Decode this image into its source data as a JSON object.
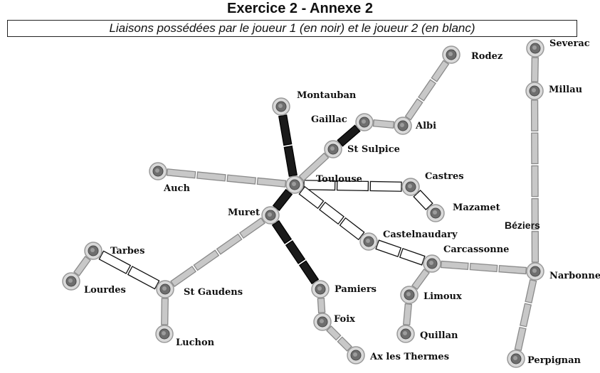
{
  "header": {
    "title": "Exercice 2 - Annexe 2",
    "subtitle": "Liaisons possédées par le joueur 1 (en noir) et le joueur 2 (en blanc)"
  },
  "cities": [
    {
      "id": "rodez",
      "label": "Rodez"
    },
    {
      "id": "severac",
      "label": "Severac"
    },
    {
      "id": "millau",
      "label": "Millau"
    },
    {
      "id": "montauban",
      "label": "Montauban"
    },
    {
      "id": "gaillac",
      "label": "Gaillac"
    },
    {
      "id": "albi",
      "label": "Albi"
    },
    {
      "id": "stsulpice",
      "label": "St Sulpice"
    },
    {
      "id": "auch",
      "label": "Auch"
    },
    {
      "id": "toulouse",
      "label": "Toulouse"
    },
    {
      "id": "castres",
      "label": "Castres"
    },
    {
      "id": "mazamet",
      "label": "Mazamet"
    },
    {
      "id": "muret",
      "label": "Muret"
    },
    {
      "id": "castelnaudary",
      "label": "Castelnaudary"
    },
    {
      "id": "carcassonne",
      "label": "Carcassonne"
    },
    {
      "id": "tarbes",
      "label": "Tarbes"
    },
    {
      "id": "lourdes",
      "label": "Lourdes"
    },
    {
      "id": "stgaudens",
      "label": "St Gaudens"
    },
    {
      "id": "pamiers",
      "label": "Pamiers"
    },
    {
      "id": "limoux",
      "label": "Limoux"
    },
    {
      "id": "narbonne",
      "label": "Narbonne"
    },
    {
      "id": "foix",
      "label": "Foix"
    },
    {
      "id": "quillan",
      "label": "Quillan"
    },
    {
      "id": "luchon",
      "label": "Luchon"
    },
    {
      "id": "axlesthermes",
      "label": "Ax les Thermes"
    },
    {
      "id": "perpignan",
      "label": "Perpignan"
    },
    {
      "id": "beziers",
      "label": "Béziers"
    }
  ],
  "links": [
    {
      "from": "toulouse",
      "to": "montauban",
      "cars": 2,
      "owner": "noir"
    },
    {
      "from": "stsulpice",
      "to": "gaillac",
      "cars": 1,
      "owner": "noir"
    },
    {
      "from": "toulouse",
      "to": "muret",
      "cars": 1,
      "owner": "noir"
    },
    {
      "from": "muret",
      "to": "pamiers",
      "cars": 3,
      "owner": "noir"
    },
    {
      "from": "toulouse",
      "to": "castres",
      "cars": 3,
      "owner": "blanc"
    },
    {
      "from": "castres",
      "to": "mazamet",
      "cars": 1,
      "owner": "blanc"
    },
    {
      "from": "toulouse",
      "to": "castelnaudary",
      "cars": 3,
      "owner": "blanc"
    },
    {
      "from": "castelnaudary",
      "to": "carcassonne",
      "cars": 2,
      "owner": "blanc"
    },
    {
      "from": "tarbes",
      "to": "stgaudens",
      "cars": 2,
      "owner": "blanc"
    },
    {
      "from": "toulouse",
      "to": "auch",
      "cars": 4,
      "owner": "libre"
    },
    {
      "from": "toulouse",
      "to": "stsulpice",
      "cars": 1,
      "owner": "libre"
    },
    {
      "from": "gaillac",
      "to": "albi",
      "cars": 1,
      "owner": "libre"
    },
    {
      "from": "albi",
      "to": "rodez",
      "cars": 3,
      "owner": "libre"
    },
    {
      "from": "severac",
      "to": "millau",
      "cars": 1,
      "owner": "libre"
    },
    {
      "from": "millau",
      "to": "narbonne",
      "cars": 5,
      "owner": "libre"
    },
    {
      "from": "muret",
      "to": "stgaudens",
      "cars": 4,
      "owner": "libre"
    },
    {
      "from": "tarbes",
      "to": "lourdes",
      "cars": 1,
      "owner": "libre"
    },
    {
      "from": "stgaudens",
      "to": "luchon",
      "cars": 1,
      "owner": "libre"
    },
    {
      "from": "carcassonne",
      "to": "narbonne",
      "cars": 3,
      "owner": "libre"
    },
    {
      "from": "carcassonne",
      "to": "limoux",
      "cars": 1,
      "owner": "libre"
    },
    {
      "from": "limoux",
      "to": "quillan",
      "cars": 1,
      "owner": "libre"
    },
    {
      "from": "narbonne",
      "to": "perpignan",
      "cars": 3,
      "owner": "libre"
    },
    {
      "from": "pamiers",
      "to": "foix",
      "cars": 1,
      "owner": "libre"
    },
    {
      "from": "foix",
      "to": "axlesthermes",
      "cars": 2,
      "owner": "libre"
    }
  ],
  "colors": {
    "player1": "#1a1a1a",
    "player2": "#ffffff",
    "unclaimed": "#c8c8c8",
    "city": "#6e6e6e"
  }
}
